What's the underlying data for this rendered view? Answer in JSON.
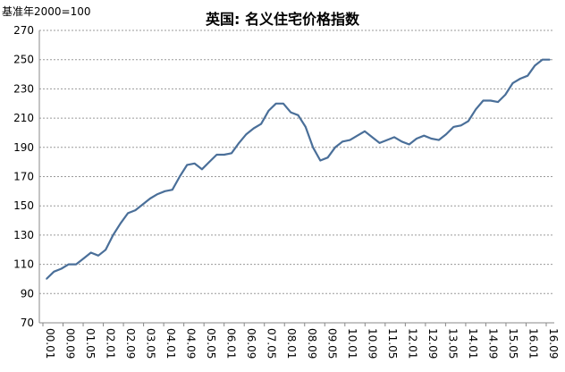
{
  "chart_data": {
    "type": "line",
    "title": "英国: 名义住宅价格指数",
    "ylabel": "基准年2000=100",
    "ylim": [
      70,
      270
    ],
    "yticks": [
      70,
      90,
      110,
      130,
      150,
      170,
      190,
      210,
      230,
      250,
      270
    ],
    "grid": true,
    "x_tick_labels": [
      "00.01",
      "00.09",
      "01.05",
      "02.01",
      "02.09",
      "03.05",
      "04.01",
      "04.09",
      "05.05",
      "06.01",
      "06.09",
      "07.05",
      "08.01",
      "08.09",
      "09.05",
      "10.01",
      "10.09",
      "11.05",
      "12.01",
      "12.09",
      "13.05",
      "14.01",
      "14.09",
      "15.05",
      "16.01",
      "16.09"
    ],
    "series_color": "#4a6f99",
    "series": [
      {
        "name": "",
        "values": [
          100,
          105,
          107,
          110,
          110,
          114,
          118,
          116,
          120,
          130,
          138,
          145,
          147,
          151,
          155,
          158,
          160,
          161,
          170,
          178,
          179,
          175,
          180,
          185,
          185,
          186,
          193,
          199,
          203,
          206,
          215,
          220,
          220,
          214,
          212,
          204,
          190,
          181,
          183,
          190,
          194,
          195,
          198,
          201,
          197,
          193,
          195,
          197,
          194,
          192,
          196,
          198,
          196,
          195,
          199,
          204,
          205,
          208,
          216,
          222,
          222,
          221,
          226,
          234,
          237,
          239,
          246,
          250,
          250
        ]
      }
    ]
  }
}
